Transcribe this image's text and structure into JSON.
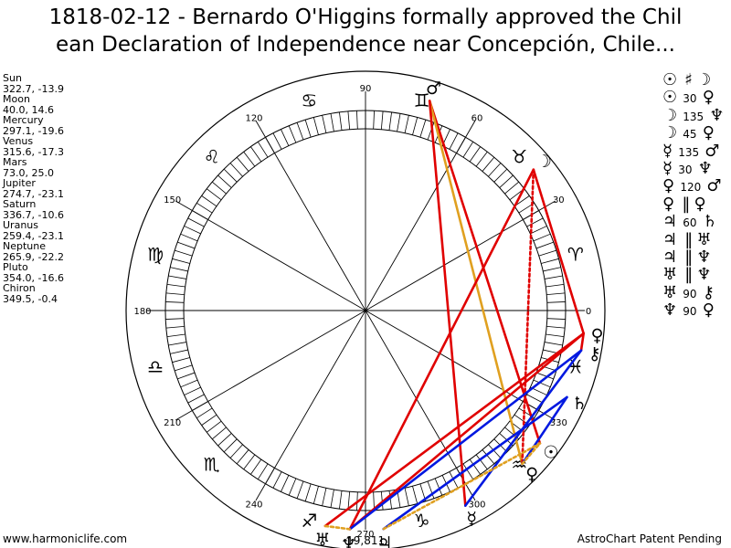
{
  "title": {
    "line1": "1818-02-12 - Bernardo O'Higgins formally approved the Chil",
    "line2": "ean Declaration of Independence near Concepción, Chile..."
  },
  "planets": [
    {
      "name": "Sun",
      "values": "322.7, -13.9"
    },
    {
      "name": "Moon",
      "values": "40.0, 14.6"
    },
    {
      "name": "Mercury",
      "values": "297.1, -19.6"
    },
    {
      "name": "Venus",
      "values": "315.6, -17.3"
    },
    {
      "name": "Mars",
      "values": "73.0, 25.0"
    },
    {
      "name": "Jupiter",
      "values": "274.7, -23.1"
    },
    {
      "name": "Saturn",
      "values": "336.7, -10.6"
    },
    {
      "name": "Uranus",
      "values": "259.4, -23.1"
    },
    {
      "name": "Neptune",
      "values": "265.9, -22.2"
    },
    {
      "name": "Pluto",
      "values": "354.0, -16.6"
    },
    {
      "name": "Chiron",
      "values": "349.5, -0.4"
    }
  ],
  "aspects": [
    {
      "a": "☉",
      "n": "",
      "s": "♯",
      "b": "☽"
    },
    {
      "a": "☉",
      "n": "30",
      "s": "",
      "b": "♀"
    },
    {
      "a": "☽",
      "n": "135",
      "s": "",
      "b": "♆"
    },
    {
      "a": "☽",
      "n": "45",
      "s": "",
      "b": "♀"
    },
    {
      "a": "☿",
      "n": "135",
      "s": "",
      "b": "♂"
    },
    {
      "a": "☿",
      "n": "30",
      "s": "",
      "b": "♆"
    },
    {
      "a": "♀",
      "n": "120",
      "s": "",
      "b": "♂"
    },
    {
      "a": "♀",
      "n": "",
      "s": "‖",
      "b": "♀"
    },
    {
      "a": "♃",
      "n": "60",
      "s": "",
      "b": "♄"
    },
    {
      "a": "♃",
      "n": "",
      "s": "‖",
      "b": "♅"
    },
    {
      "a": "♃",
      "n": "",
      "s": "‖",
      "b": "♆"
    },
    {
      "a": "♅",
      "n": "",
      "s": "‖",
      "b": "♆"
    },
    {
      "a": "♅",
      "n": "90",
      "s": "",
      "b": "⚷"
    },
    {
      "a": "♆",
      "n": "90",
      "s": "",
      "b": "♀"
    }
  ],
  "wheel": {
    "degree_labels": [
      "0",
      "30",
      "60",
      "90",
      "120",
      "150",
      "180",
      "210",
      "240",
      "270",
      "300",
      "330"
    ],
    "signs": [
      "♈",
      "♉",
      "♊",
      "♋",
      "♌",
      "♍",
      "♎",
      "♏",
      "♐",
      "♑",
      "♒",
      "♓"
    ],
    "colors": {
      "red": "#e00000",
      "blue": "#0018e0",
      "orange": "#e0a020"
    },
    "bodies": [
      {
        "glyph": "☉",
        "lon": 322.7
      },
      {
        "glyph": "☽",
        "lon": 40.0
      },
      {
        "glyph": "☿",
        "lon": 297.1
      },
      {
        "glyph": "♀",
        "lon": 315.6
      },
      {
        "glyph": "♂",
        "lon": 73.0
      },
      {
        "glyph": "♃",
        "lon": 274.7
      },
      {
        "glyph": "♄",
        "lon": 336.7
      },
      {
        "glyph": "♅",
        "lon": 259.4
      },
      {
        "glyph": "♆",
        "lon": 265.9
      },
      {
        "glyph": "♀",
        "lon": 354.0
      },
      {
        "glyph": "⚷",
        "lon": 349.5
      }
    ],
    "axis_label": "-19,811"
  },
  "footer": {
    "left": "www.harmoniclife.com",
    "right": "AstroChart Patent Pending"
  }
}
